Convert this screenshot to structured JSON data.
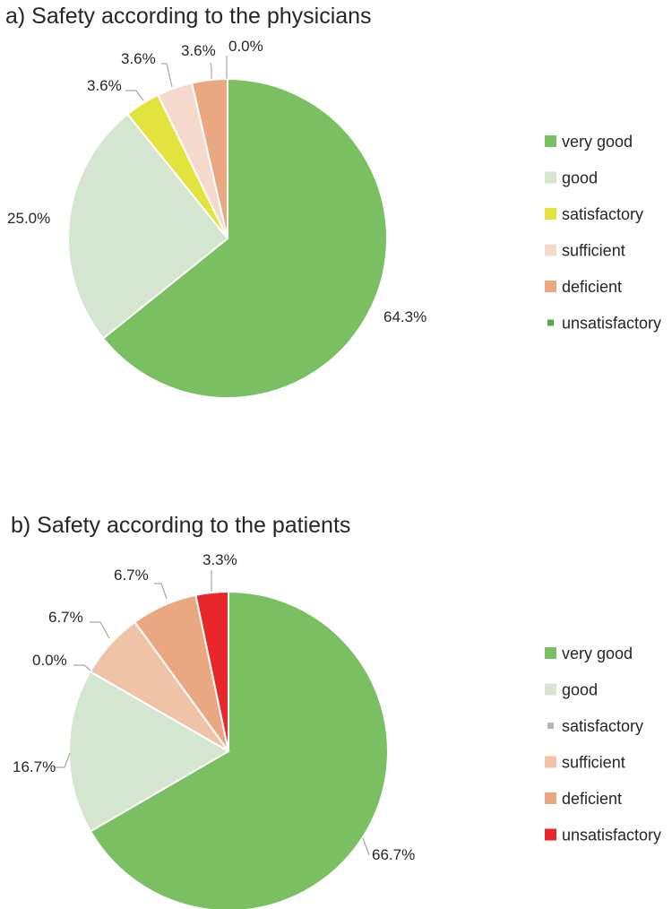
{
  "chart_data": [
    {
      "type": "pie",
      "title": "a) Safety according to the physicians",
      "categories": [
        "very good",
        "good",
        "satisfactory",
        "sufficient",
        "deficient",
        "unsatisfactory"
      ],
      "values": [
        64.3,
        25.0,
        3.6,
        3.6,
        3.6,
        0.0
      ],
      "data_labels": [
        "64.3%",
        "25.0%",
        "3.6%",
        "3.6%",
        "3.6%",
        "0.0%"
      ],
      "colors": [
        "#7bbf63",
        "#d4e6d0",
        "#e3e33d",
        "#f5d9cc",
        "#e9a882",
        "#5aa64a"
      ],
      "legend_position": "right"
    },
    {
      "type": "pie",
      "title": "b) Safety according to the patients",
      "categories": [
        "very good",
        "good",
        "satisfactory",
        "sufficient",
        "deficient",
        "unsatisfactory"
      ],
      "values": [
        66.7,
        16.7,
        0.0,
        6.7,
        6.7,
        3.3
      ],
      "data_labels": [
        "66.7%",
        "16.7%",
        "0.0%",
        "6.7%",
        "6.7%",
        "3.3%"
      ],
      "colors": [
        "#7bbf63",
        "#d4e6d0",
        "#b8b8b8",
        "#f0c2a6",
        "#e9a882",
        "#e8272b"
      ],
      "legend_position": "right"
    }
  ]
}
